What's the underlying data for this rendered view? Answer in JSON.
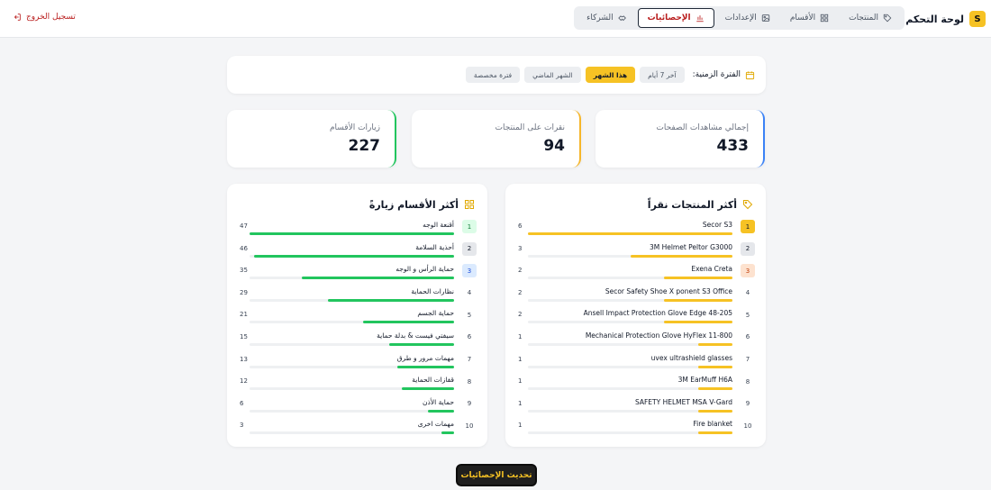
{
  "header": {
    "brand_logo": "S",
    "brand_title": "لوحة التحكم",
    "nav": [
      {
        "label": "المنتجات",
        "icon": "tag-icon",
        "active": false
      },
      {
        "label": "الأقسام",
        "icon": "grid-icon",
        "active": false
      },
      {
        "label": "الإعدادات",
        "icon": "image-icon",
        "active": false
      },
      {
        "label": "الإحصائيات",
        "icon": "bar-chart-icon",
        "active": true
      },
      {
        "label": "الشركاء",
        "icon": "handshake-icon",
        "active": false
      }
    ],
    "logout_label": "تسجيل الخروج"
  },
  "filter": {
    "label": "الفترة الزمنية:",
    "options": [
      {
        "label": "آخر 7 أيام",
        "active": false
      },
      {
        "label": "هذا الشهر",
        "active": true
      },
      {
        "label": "الشهر الماضي",
        "active": false
      },
      {
        "label": "فترة مخصصة",
        "active": false
      }
    ]
  },
  "stats": {
    "page_views": {
      "label": "إجمالي مشاهدات الصفحات",
      "value": "433",
      "accent": "#3b82f6"
    },
    "product_clicks": {
      "label": "نقرات على المنتجات",
      "value": "94",
      "accent": "#f6b62a"
    },
    "category_visits": {
      "label": "زيارات الأقسام",
      "value": "227",
      "accent": "#22c55e"
    }
  },
  "top_products": {
    "title": "أكثر المنتجات نقراً",
    "bar_color": "#f6c224",
    "max": 6,
    "rows": [
      {
        "rank": "1",
        "name": "Secor S3",
        "count": 6
      },
      {
        "rank": "2",
        "name": "3M Helmet Peltor G3000",
        "count": 3
      },
      {
        "rank": "3",
        "name": "Exena Creta",
        "count": 2
      },
      {
        "rank": "4",
        "name": "Secor Safety Shoe X ponent S3 Office",
        "count": 2
      },
      {
        "rank": "5",
        "name": "Ansell Impact Protection Glove Edge 48-205",
        "count": 2
      },
      {
        "rank": "6",
        "name": "Mechanical Protection Glove HyFlex 11-800",
        "count": 1
      },
      {
        "rank": "7",
        "name": "uvex ultrashield glasses",
        "count": 1
      },
      {
        "rank": "8",
        "name": "3M EarMuff H6A",
        "count": 1
      },
      {
        "rank": "9",
        "name": "SAFETY HELMET MSA V-Gard",
        "count": 1
      },
      {
        "rank": "10",
        "name": "Fire blanket",
        "count": 1
      }
    ]
  },
  "top_categories": {
    "title": "أكثر الأقسام زيارةً",
    "bar_color": "#22c55e",
    "max": 47,
    "rows": [
      {
        "rank": "1",
        "name": "أقنعة الوجه",
        "count": 47
      },
      {
        "rank": "2",
        "name": "أحذية السلامة",
        "count": 46
      },
      {
        "rank": "3",
        "name": "حماية الرأس و الوجه",
        "count": 35
      },
      {
        "rank": "4",
        "name": "نظارات الحماية",
        "count": 29
      },
      {
        "rank": "5",
        "name": "حماية الجسم",
        "count": 21
      },
      {
        "rank": "6",
        "name": "سيفتي فيست & بدلة حماية",
        "count": 15
      },
      {
        "rank": "7",
        "name": "مهمات مرور و طرق",
        "count": 13
      },
      {
        "rank": "8",
        "name": "قفازات الحماية",
        "count": 12
      },
      {
        "rank": "9",
        "name": "حماية الأذن",
        "count": 6
      },
      {
        "rank": "10",
        "name": "مهمات اخرى",
        "count": 3
      }
    ]
  },
  "refresh_label": "تحديث الإحصائيات"
}
